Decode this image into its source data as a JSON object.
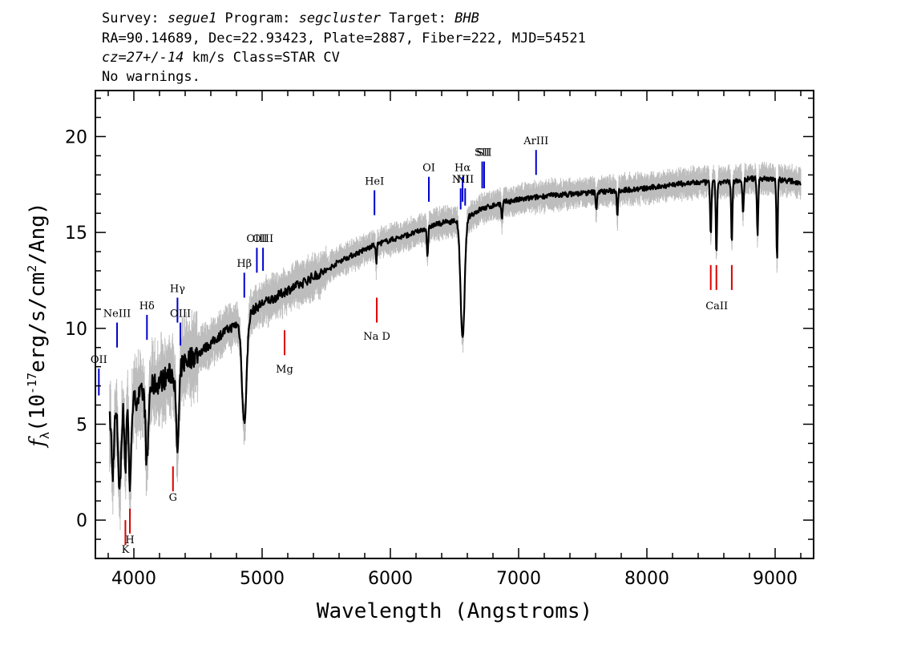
{
  "header": {
    "survey_label": "Survey: ",
    "survey": "segue1",
    "program_label": " Program: ",
    "program": "segcluster",
    "target_label": " Target: ",
    "target": "BHB",
    "line2": "RA=90.14689, Dec=22.93423, Plate=2887, Fiber=222, MJD=54521",
    "cz": "cz=27+/-14",
    "line3_rest": " km/s Class=STAR CV",
    "line4": "No warnings."
  },
  "chart_data": {
    "type": "line",
    "title": "",
    "xlabel": "Wavelength (Angstroms)",
    "ylabel_prefix": "f",
    "ylabel_sub": "λ",
    "ylabel_text_a": "(10",
    "ylabel_exp1": "-17",
    "ylabel_text_b": "erg/s/cm",
    "ylabel_exp2": "2",
    "ylabel_text_c": "/Ang)",
    "xlim": [
      3700,
      9300
    ],
    "ylim": [
      -2,
      22.4
    ],
    "xticks": [
      4000,
      5000,
      6000,
      7000,
      8000,
      9000
    ],
    "yticks": [
      0,
      5,
      10,
      15,
      20
    ],
    "colors": {
      "flux": "#000000",
      "error": "#bdbdbd",
      "emission": "#0000cc",
      "absorption": "#dd0000"
    },
    "continuum": [
      [
        3810,
        5.2
      ],
      [
        3900,
        5.6
      ],
      [
        4000,
        6.2
      ],
      [
        4100,
        6.8
      ],
      [
        4200,
        7.2
      ],
      [
        4300,
        7.7
      ],
      [
        4400,
        8.3
      ],
      [
        4500,
        8.7
      ],
      [
        4600,
        9.2
      ],
      [
        4700,
        9.8
      ],
      [
        4800,
        10.2
      ],
      [
        4900,
        10.8
      ],
      [
        5000,
        11.3
      ],
      [
        5100,
        11.6
      ],
      [
        5200,
        12.0
      ],
      [
        5300,
        12.3
      ],
      [
        5400,
        12.7
      ],
      [
        5500,
        13.0
      ],
      [
        5600,
        13.5
      ],
      [
        5700,
        13.8
      ],
      [
        5800,
        14.1
      ],
      [
        5900,
        14.4
      ],
      [
        6000,
        14.6
      ],
      [
        6100,
        14.8
      ],
      [
        6200,
        15.0
      ],
      [
        6300,
        15.3
      ],
      [
        6400,
        15.5
      ],
      [
        6500,
        15.6
      ],
      [
        6600,
        15.8
      ],
      [
        6700,
        16.2
      ],
      [
        6800,
        16.4
      ],
      [
        6900,
        16.6
      ],
      [
        7000,
        16.7
      ],
      [
        7200,
        16.9
      ],
      [
        7400,
        17.0
      ],
      [
        7600,
        17.1
      ],
      [
        7800,
        17.2
      ],
      [
        8000,
        17.3
      ],
      [
        8200,
        17.5
      ],
      [
        8400,
        17.6
      ],
      [
        8600,
        17.6
      ],
      [
        8800,
        17.8
      ],
      [
        9000,
        17.8
      ],
      [
        9100,
        17.7
      ],
      [
        9200,
        17.6
      ]
    ],
    "absorption_features": [
      [
        3835,
        3.0,
        8
      ],
      [
        3889,
        4.0,
        10
      ],
      [
        3934,
        3.2,
        6
      ],
      [
        3970,
        4.5,
        8
      ],
      [
        4102,
        4.0,
        10
      ],
      [
        4340,
        4.3,
        12
      ],
      [
        4861,
        5.5,
        18
      ],
      [
        5890,
        1.0,
        4
      ],
      [
        6290,
        1.6,
        5
      ],
      [
        6563,
        6.3,
        16
      ],
      [
        6870,
        0.9,
        5
      ],
      [
        7605,
        0.9,
        5
      ],
      [
        7770,
        1.3,
        4
      ],
      [
        8498,
        2.7,
        5
      ],
      [
        8542,
        3.7,
        5
      ],
      [
        8662,
        3.2,
        5
      ],
      [
        8750,
        1.8,
        5
      ],
      [
        8863,
        3.0,
        5
      ],
      [
        9015,
        4.2,
        5
      ]
    ],
    "emission_lines": [
      {
        "label": "OII",
        "x": 3727,
        "y_label": 8.2,
        "y0": 6.5,
        "y1": 7.9
      },
      {
        "label": "NeIII",
        "x": 3869,
        "y_label": 10.6,
        "y0": 9.0,
        "y1": 10.3
      },
      {
        "label": "Hδ",
        "x": 4102,
        "y_label": 11.0,
        "y0": 9.4,
        "y1": 10.7
      },
      {
        "label": "Hγ",
        "x": 4340,
        "y_label": 11.9,
        "y0": 10.3,
        "y1": 11.6
      },
      {
        "label": "OIII",
        "x": 4363,
        "y_label": 10.6,
        "y0": 9.1,
        "y1": 10.3
      },
      {
        "label": "Hβ",
        "x": 4861,
        "y_label": 13.2,
        "y0": 11.6,
        "y1": 12.9
      },
      {
        "label": "OIII",
        "x": 4959,
        "y_label": 14.5,
        "y0": 12.9,
        "y1": 14.2
      },
      {
        "label": "OIII",
        "x": 5007,
        "y_label": 14.5,
        "y0": 13.0,
        "y1": 14.2
      },
      {
        "label": "HeI",
        "x": 5876,
        "y_label": 17.5,
        "y0": 15.9,
        "y1": 17.2
      },
      {
        "label": "OI",
        "x": 6300,
        "y_label": 18.2,
        "y0": 16.6,
        "y1": 17.9
      },
      {
        "label": "NII",
        "x": 6548,
        "y_label": 17.6,
        "y0": 16.2,
        "y1": 17.3
      },
      {
        "label": "Hα",
        "x": 6563,
        "y_label": 18.2,
        "y0": 16.6,
        "y1": 17.9
      },
      {
        "label": "NII",
        "x": 6583,
        "y_label": 17.6,
        "y0": 16.4,
        "y1": 17.3
      },
      {
        "label": "SII",
        "x": 6716,
        "y_label": 19.0,
        "y0": 17.3,
        "y1": 18.7
      },
      {
        "label": "SII",
        "x": 6731,
        "y_label": 19.0,
        "y0": 17.3,
        "y1": 18.7
      },
      {
        "label": "ArIII",
        "x": 7136,
        "y_label": 19.6,
        "y0": 18.0,
        "y1": 19.3
      }
    ],
    "absorption_lines": [
      {
        "label": "K",
        "x": 3934,
        "y_label": -1.7,
        "y0": -1.3,
        "y1": 0.0
      },
      {
        "label": "H",
        "x": 3969,
        "y_label": -1.2,
        "y0": -0.7,
        "y1": 0.6
      },
      {
        "label": "G",
        "x": 4305,
        "y_label": 1.0,
        "y0": 1.5,
        "y1": 2.8
      },
      {
        "label": "Mg",
        "x": 5175,
        "y_label": 7.7,
        "y0": 8.6,
        "y1": 9.9
      },
      {
        "label": "Na D",
        "x": 5894,
        "y_label": 9.4,
        "y0": 10.3,
        "y1": 11.6
      },
      {
        "label": "CaII",
        "x": 8498,
        "y_label": 11.9,
        "y0": 12.0,
        "y1": 13.3
      },
      {
        "label": "CaII",
        "x": 8542,
        "y_label": 11.9,
        "y0": 12.0,
        "y1": 13.3
      },
      {
        "label": "CaII",
        "x": 8662,
        "y_label": 11.9,
        "y0": 12.0,
        "y1": 13.3
      }
    ],
    "grouped_label": {
      "label": "CaII",
      "x": 8545,
      "y": 11.0
    }
  }
}
